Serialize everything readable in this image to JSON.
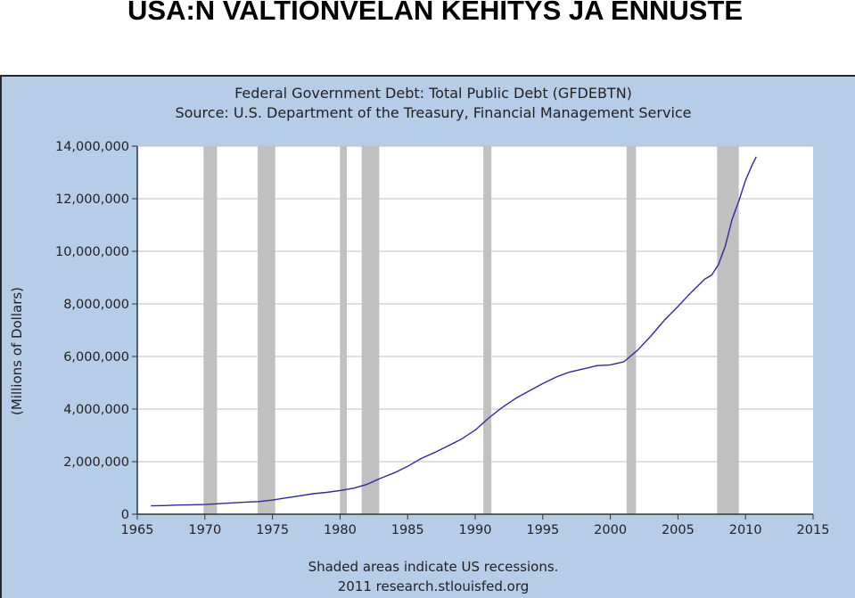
{
  "slide": {
    "title": "USA:N VALTIONVELAN KEHITYS JA ENNUSTE"
  },
  "colors": {
    "frame_background": "#b5cde6",
    "plot_background": "#ffffff",
    "recession_shading": "#c0c0c0",
    "line": "#2b2b9e",
    "grid": "#bfbfbf"
  },
  "chart_data": {
    "type": "line",
    "title": "Federal Government Debt: Total Public Debt (GFDEBTN)",
    "subtitle": "Source: U.S. Department of the Treasury, Financial Management Service",
    "xlabel": "",
    "ylabel": "(Millions of Dollars)",
    "xlim": [
      1965,
      2015
    ],
    "ylim": [
      0,
      14000000
    ],
    "x_ticks": [
      1965,
      1970,
      1975,
      1980,
      1985,
      1990,
      1995,
      2000,
      2005,
      2010,
      2015
    ],
    "y_ticks": [
      0,
      2000000,
      4000000,
      6000000,
      8000000,
      10000000,
      12000000,
      14000000
    ],
    "x_tick_labels": [
      "1965",
      "1970",
      "1975",
      "1980",
      "1985",
      "1990",
      "1995",
      "2000",
      "2005",
      "2010",
      "2015"
    ],
    "y_tick_labels": [
      "0",
      "2,000,000",
      "4,000,000",
      "6,000,000",
      "8,000,000",
      "10,000,000",
      "12,000,000",
      "14,000,000"
    ],
    "grid": "horizontal",
    "legend": "none",
    "recessions": [
      [
        1969.9,
        1970.9
      ],
      [
        1973.9,
        1975.2
      ],
      [
        1980.0,
        1980.5
      ],
      [
        1981.6,
        1982.9
      ],
      [
        1990.6,
        1991.2
      ],
      [
        2001.2,
        2001.9
      ],
      [
        2007.9,
        2009.5
      ]
    ],
    "series": [
      {
        "x": [
          1966.0,
          1967.0,
          1968.0,
          1969.0,
          1970.0,
          1971.0,
          1972.0,
          1973.0,
          1974.0,
          1975.0,
          1976.0,
          1977.0,
          1978.0,
          1979.0,
          1980.0,
          1981.0,
          1982.0,
          1983.0,
          1984.0,
          1985.0,
          1986.0,
          1987.0,
          1988.0,
          1989.0,
          1990.0,
          1991.0,
          1992.0,
          1993.0,
          1994.0,
          1995.0,
          1996.0,
          1997.0,
          1998.0,
          1999.0,
          2000.0,
          2001.0,
          2002.0,
          2003.0,
          2004.0,
          2005.0,
          2006.0,
          2007.0,
          2007.5,
          2008.0,
          2008.5,
          2009.0,
          2009.5,
          2010.0,
          2010.5,
          2010.8
        ],
        "y": [
          320000,
          330000,
          350000,
          360000,
          370000,
          400000,
          430000,
          460000,
          480000,
          540000,
          620000,
          700000,
          780000,
          830000,
          900000,
          990000,
          1140000,
          1370000,
          1570000,
          1820000,
          2120000,
          2350000,
          2600000,
          2860000,
          3200000,
          3660000,
          4060000,
          4410000,
          4690000,
          4970000,
          5220000,
          5410000,
          5530000,
          5650000,
          5680000,
          5800000,
          6230000,
          6780000,
          7380000,
          7900000,
          8450000,
          8950000,
          9100000,
          9500000,
          10200000,
          11200000,
          11900000,
          12700000,
          13300000,
          13600000
        ]
      }
    ],
    "footer": [
      "Shaded areas indicate US recessions.",
      "2011 research.stlouisfed.org"
    ]
  }
}
